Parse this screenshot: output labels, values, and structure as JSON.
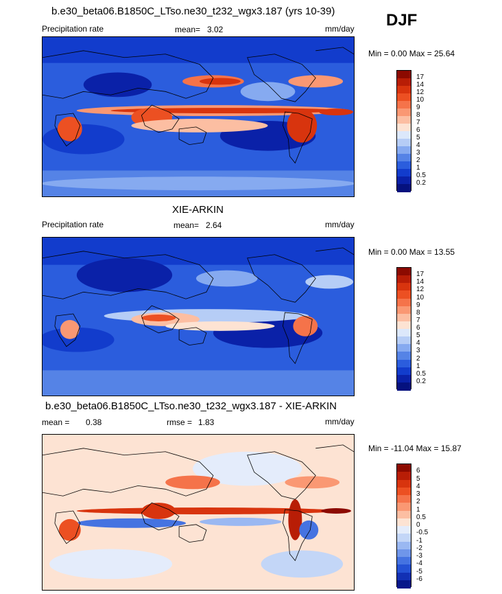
{
  "season": "DJF",
  "panels": [
    {
      "title": "b.e30_beta06.B1850C_LTso.ne30_t232_wgx3.187 (yrs 10-39)",
      "left_label": "Precipitation rate",
      "stat_label": "mean=",
      "stat_value": "3.02",
      "stat2_label": "",
      "stat2_value": "",
      "units": "mm/day",
      "minmax": "Min =   0.00 Max =  25.64",
      "colorbar_labels": [
        "17",
        "14",
        "12",
        "10",
        "9",
        "8",
        "7",
        "6",
        "5",
        "4",
        "3",
        "2",
        "1",
        "0.5",
        "0.2"
      ],
      "colorbar_colors": [
        "#8c0a00",
        "#b81d06",
        "#d8340e",
        "#ec5022",
        "#f5734a",
        "#fa9873",
        "#fcbea2",
        "#fde3d3",
        "#dce8fb",
        "#b6cdf6",
        "#86aaf0",
        "#5583e6",
        "#2b5ddd",
        "#123ccc",
        "#0a21a8",
        "#05117e"
      ]
    },
    {
      "title": "XIE-ARKIN",
      "left_label": "Precipitation rate",
      "stat_label": "mean=",
      "stat_value": "2.64",
      "stat2_label": "",
      "stat2_value": "",
      "units": "mm/day",
      "minmax": "Min =   0.00 Max =  13.55",
      "colorbar_labels": [
        "17",
        "14",
        "12",
        "10",
        "9",
        "8",
        "7",
        "6",
        "5",
        "4",
        "3",
        "2",
        "1",
        "0.5",
        "0.2"
      ],
      "colorbar_colors": [
        "#8c0a00",
        "#b81d06",
        "#d8340e",
        "#ec5022",
        "#f5734a",
        "#fa9873",
        "#fcbea2",
        "#fde3d3",
        "#dce8fb",
        "#b6cdf6",
        "#86aaf0",
        "#5583e6",
        "#2b5ddd",
        "#123ccc",
        "#0a21a8",
        "#05117e"
      ]
    },
    {
      "title": "b.e30_beta06.B1850C_LTso.ne30_t232_wgx3.187 - XIE-ARKIN",
      "left_label": "mean =",
      "stat_label": "",
      "stat_value": "0.38",
      "stat2_label": "rmse =",
      "stat2_value": "1.83",
      "units": "mm/day",
      "minmax": "Min = -11.04 Max =  15.87",
      "colorbar_labels": [
        "6",
        "5",
        "4",
        "3",
        "2",
        "1",
        "0.5",
        "0",
        "-0.5",
        "-1",
        "-2",
        "-3",
        "-4",
        "-5",
        "-6"
      ],
      "colorbar_colors": [
        "#8c0a00",
        "#b81d06",
        "#d8340e",
        "#ec5022",
        "#f5734a",
        "#fa9873",
        "#fcbea2",
        "#fde3d3",
        "#e4ecfb",
        "#c3d6f7",
        "#9ab8f2",
        "#6f96ea",
        "#4573e1",
        "#2451d4",
        "#1230b4",
        "#06178a"
      ]
    }
  ],
  "chart_data": [
    {
      "type": "heatmap",
      "title": "b.e30_beta06.B1850C_LTso.ne30_t232_wgx3.187 (yrs 10-39)",
      "variable": "Precipitation rate",
      "units": "mm/day",
      "mean": 3.02,
      "min": 0.0,
      "max": 25.64,
      "contour_levels": [
        0.2,
        0.5,
        1,
        2,
        3,
        4,
        5,
        6,
        7,
        8,
        9,
        10,
        12,
        14,
        17
      ]
    },
    {
      "type": "heatmap",
      "title": "XIE-ARKIN",
      "variable": "Precipitation rate",
      "units": "mm/day",
      "mean": 2.64,
      "min": 0.0,
      "max": 13.55,
      "contour_levels": [
        0.2,
        0.5,
        1,
        2,
        3,
        4,
        5,
        6,
        7,
        8,
        9,
        10,
        12,
        14,
        17
      ]
    },
    {
      "type": "heatmap",
      "title": "b.e30_beta06.B1850C_LTso.ne30_t232_wgx3.187 - XIE-ARKIN",
      "units": "mm/day",
      "mean": 0.38,
      "rmse": 1.83,
      "min": -11.04,
      "max": 15.87,
      "contour_levels": [
        -6,
        -5,
        -4,
        -3,
        -2,
        -1,
        -0.5,
        0,
        0.5,
        1,
        2,
        3,
        4,
        5,
        6
      ]
    }
  ]
}
